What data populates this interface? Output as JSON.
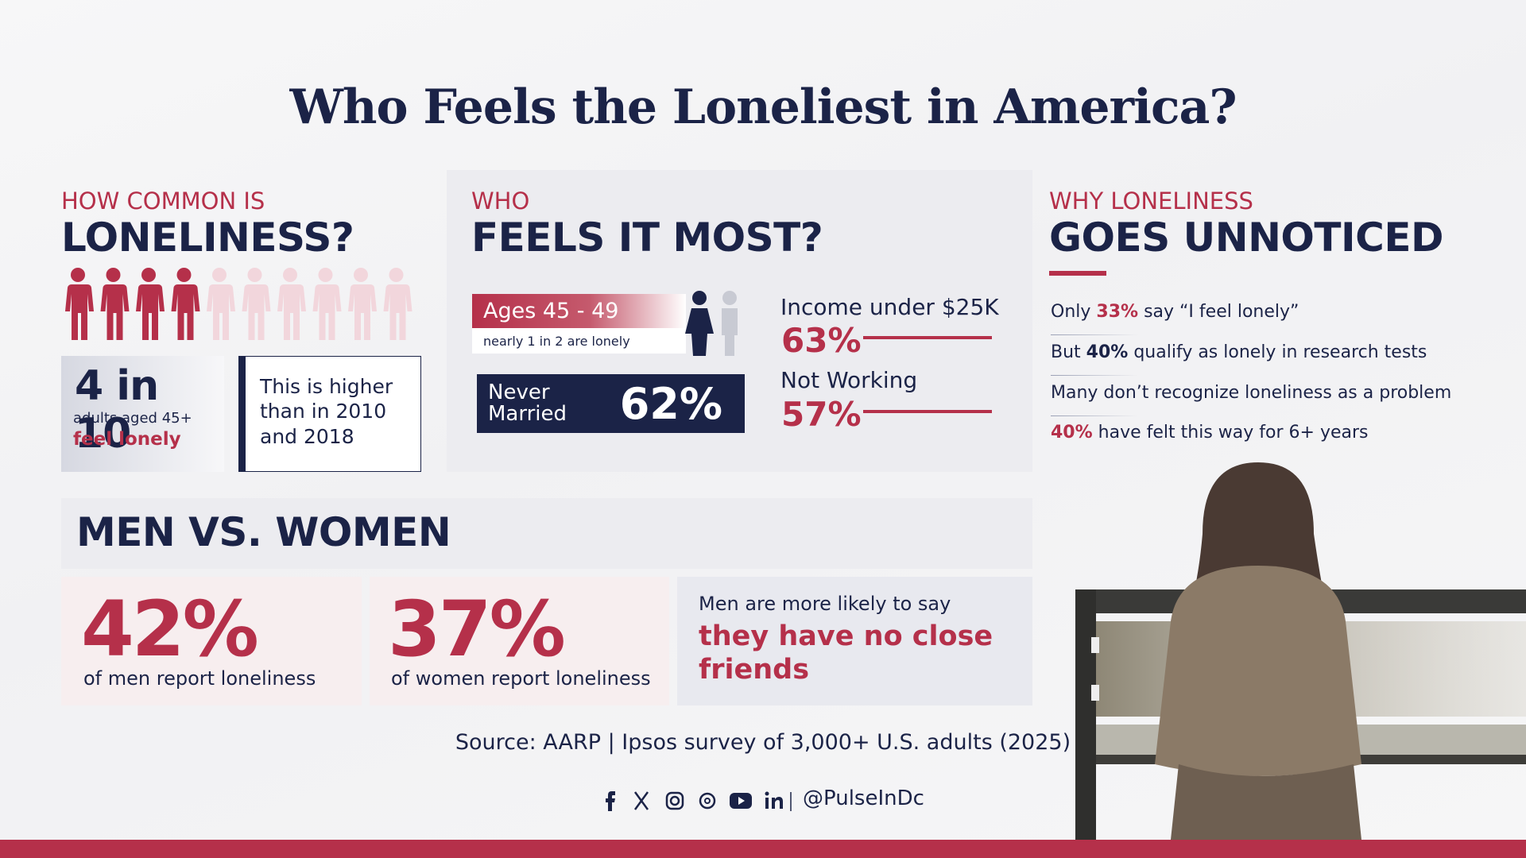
{
  "title": "Who Feels the Loneliest in America?",
  "how_common": {
    "kicker": "HOW COMMON IS",
    "heading": "LONELINESS?",
    "icons": {
      "total": 10,
      "filled": 4
    },
    "stat": "4 in 10",
    "stat_sub": "adults aged 45+",
    "stat_highlight": "feel lonely",
    "note": "This is higher than in 2010 and 2018"
  },
  "who": {
    "kicker": "WHO",
    "heading": "FEELS IT MOST?",
    "ages": {
      "label": "Ages 45 - 49",
      "sub": "nearly 1 in 2 are lonely"
    },
    "never_married": {
      "label": "Never Married",
      "value": "62%"
    },
    "income": {
      "label": "Income under $25K",
      "value": "63%"
    },
    "not_working": {
      "label": "Not Working",
      "value": "57%"
    }
  },
  "why": {
    "kicker": "WHY LONELINESS",
    "heading": "GOES UNNOTICED",
    "points": [
      {
        "before": "Only",
        "highlight": "33%",
        "after": "say “I feel lonely”",
        "accent": "red"
      },
      {
        "before": "But",
        "highlight": "40%",
        "after": "qualify as lonely in research tests",
        "accent": "navy"
      },
      {
        "after": "Many don’t recognize loneliness as a problem"
      },
      {
        "highlight": "40%",
        "after": "have felt this way for 6+ years",
        "accent": "red"
      }
    ]
  },
  "men_vs_women": {
    "heading": "MEN VS. WOMEN",
    "men": {
      "value": "42%",
      "label": "of men report loneliness"
    },
    "women": {
      "value": "37%",
      "label": "of women report loneliness"
    },
    "note": {
      "lead": "Men are more likely to say",
      "highlight": "they have no close friends"
    }
  },
  "source": "Source: AARP | Ipsos survey of 3,000+ U.S. adults (2025)",
  "handle": "@PulseInDc"
}
